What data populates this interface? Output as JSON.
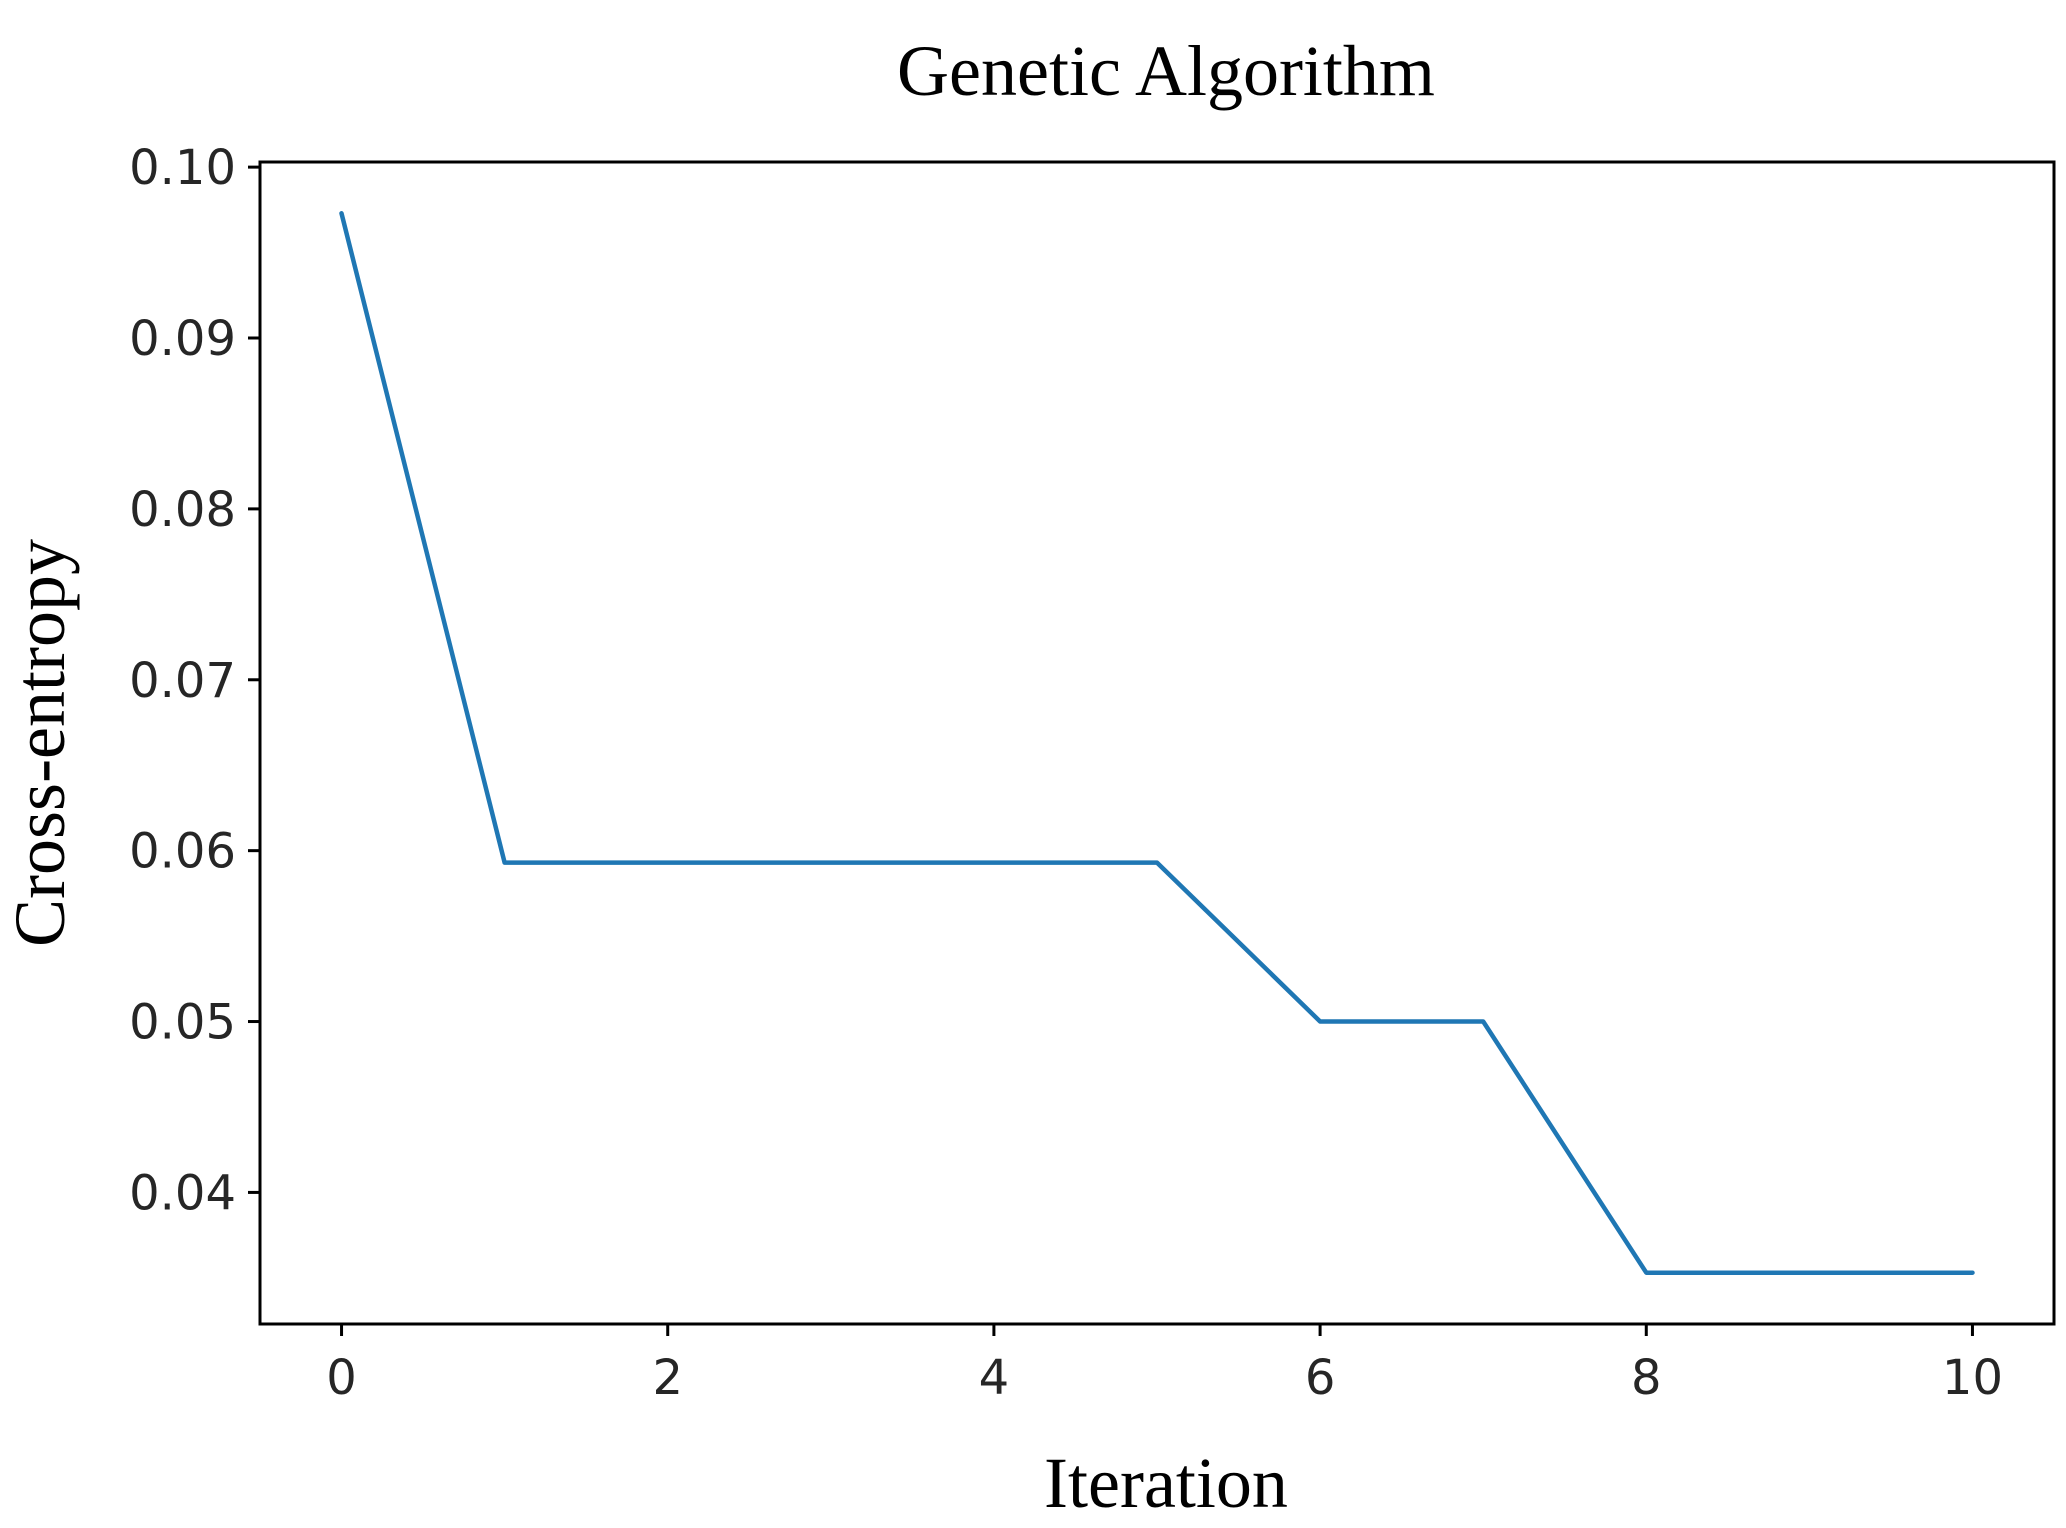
{
  "chart_data": {
    "type": "line",
    "title": "Genetic Algorithm",
    "xlabel": "Iteration",
    "ylabel": "Cross-entropy",
    "xlim": [
      -0.5,
      10.5
    ],
    "ylim": [
      0.0323,
      0.1003
    ],
    "xticks": [
      0,
      2,
      4,
      6,
      8,
      10
    ],
    "xtick_labels": [
      "0",
      "2",
      "4",
      "6",
      "8",
      "10"
    ],
    "yticks": [
      0.04,
      0.05,
      0.06,
      0.07,
      0.08,
      0.09,
      0.1
    ],
    "ytick_labels": [
      "0.04",
      "0.05",
      "0.06",
      "0.07",
      "0.08",
      "0.09",
      "0.10"
    ],
    "grid": false,
    "series": [
      {
        "color": "#1f77b4",
        "x": [
          0,
          1,
          2,
          3,
          4,
          5,
          6,
          7,
          8,
          9,
          10
        ],
        "y": [
          0.0973,
          0.0593,
          0.0593,
          0.0593,
          0.0593,
          0.0593,
          0.05,
          0.05,
          0.0353,
          0.0353,
          0.0353
        ]
      }
    ]
  }
}
